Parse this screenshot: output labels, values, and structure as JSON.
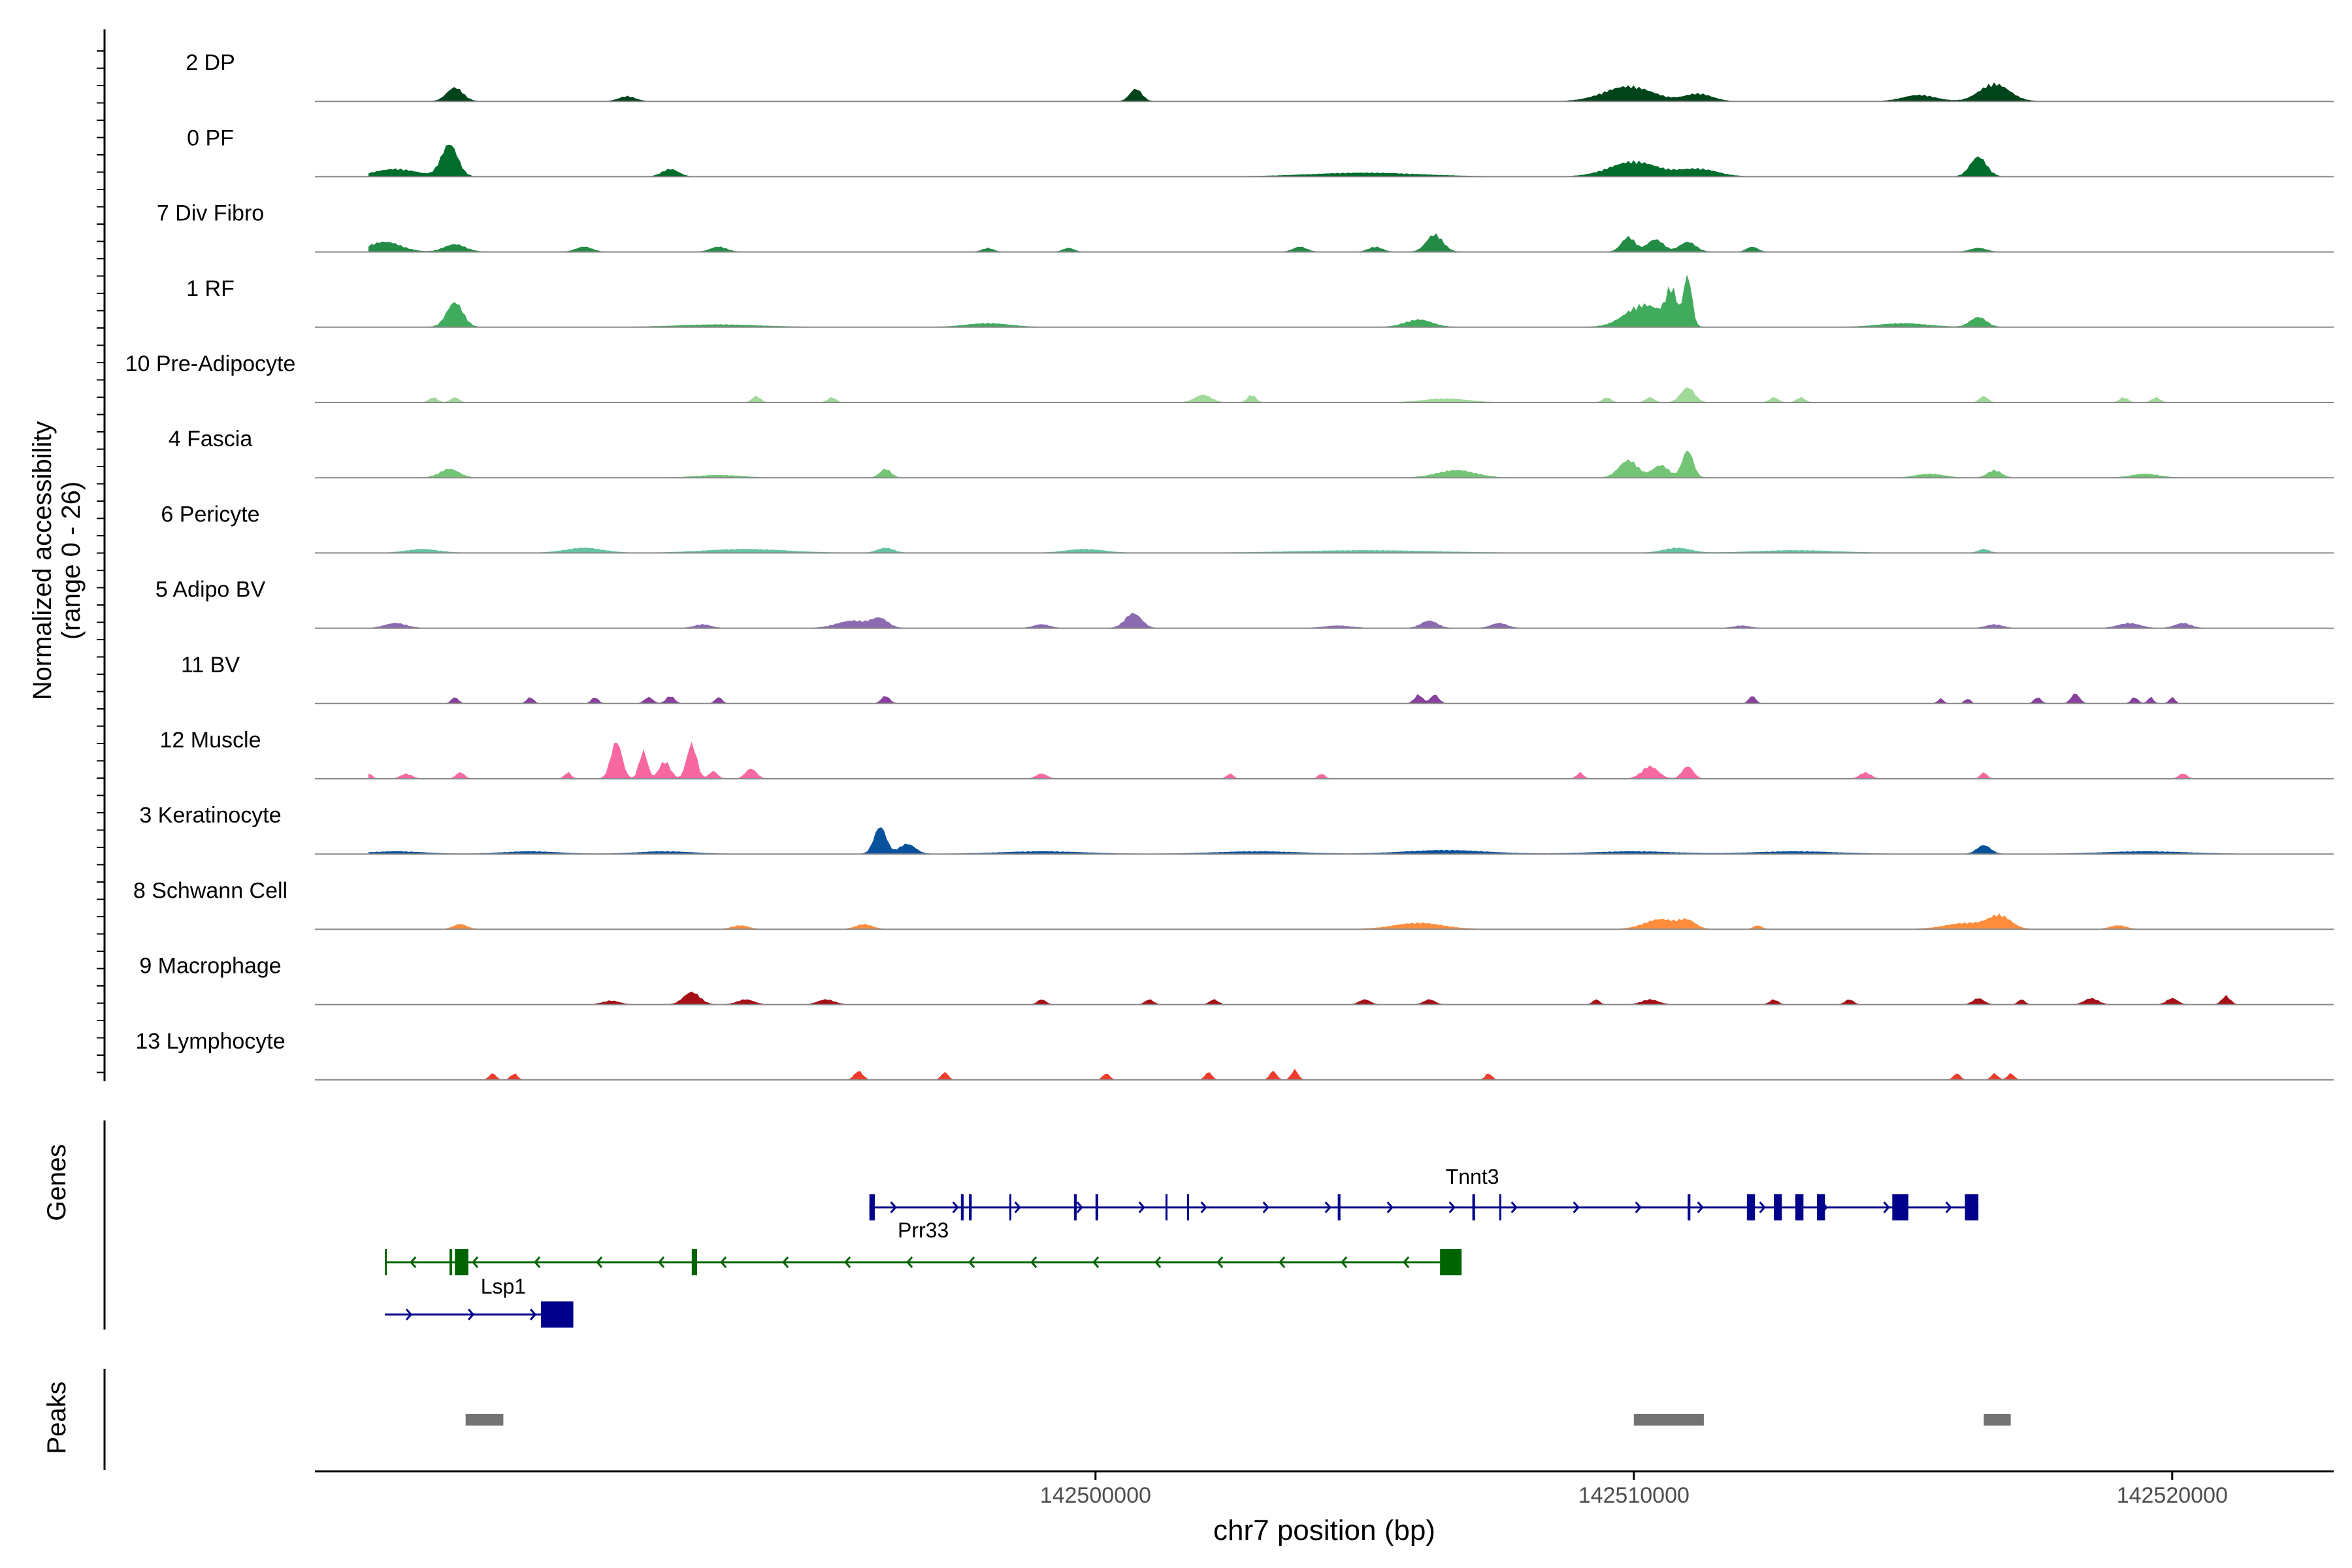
{
  "chart_data": {
    "type": "area",
    "title": "",
    "ylabel_line1": "Normalized accessibility",
    "ylabel_line2": "(range 0 - 26)",
    "xlabel": "chr7 position (bp)",
    "xlim": [
      142485500,
      142523000
    ],
    "ylim": [
      0,
      26
    ],
    "x_ticks": [
      {
        "value": 142500000,
        "label": "142500000"
      },
      {
        "value": 142510000,
        "label": "142510000"
      },
      {
        "value": 142520000,
        "label": "142520000"
      }
    ],
    "tracks": [
      {
        "name": "2 DP",
        "color": "#00441b",
        "peaks": [
          [
            142488100,
            5.5,
            300
          ],
          [
            142491300,
            2.0,
            300
          ],
          [
            142500750,
            5.0,
            220
          ],
          [
            142509900,
            6.0,
            900
          ],
          [
            142511200,
            3.0,
            500
          ],
          [
            142516700,
            7.0,
            550
          ],
          [
            142515300,
            2.5,
            600
          ]
        ]
      },
      {
        "name": "0 PF",
        "color": "#006d2c",
        "peaks": [
          [
            142488000,
            13.0,
            300
          ],
          [
            142487000,
            3.0,
            800
          ],
          [
            142492100,
            3.0,
            300
          ],
          [
            142510000,
            6.0,
            900
          ],
          [
            142511200,
            3.0,
            700
          ],
          [
            142516400,
            8.0,
            300
          ],
          [
            142505000,
            1.5,
            2000
          ]
        ]
      },
      {
        "name": "7 Div Fibro",
        "color": "#238b45",
        "peaks": [
          [
            142486800,
            4.0,
            600
          ],
          [
            142488100,
            3.0,
            400
          ],
          [
            142490500,
            2.0,
            300
          ],
          [
            142493000,
            2.0,
            300
          ],
          [
            142498000,
            1.5,
            200
          ],
          [
            142499500,
            1.5,
            200
          ],
          [
            142503800,
            2.0,
            250
          ],
          [
            142505200,
            2.0,
            250
          ],
          [
            142506300,
            7.0,
            300
          ],
          [
            142509900,
            6.0,
            250
          ],
          [
            142510400,
            5.0,
            300
          ],
          [
            142511000,
            4.0,
            300
          ],
          [
            142512200,
            2.0,
            200
          ],
          [
            142516400,
            1.5,
            300
          ]
        ]
      },
      {
        "name": "1 RF",
        "color": "#41ab5d",
        "peaks": [
          [
            142488100,
            10.0,
            300
          ],
          [
            142493000,
            1.0,
            1500
          ],
          [
            142498000,
            1.5,
            800
          ],
          [
            142506000,
            3.0,
            500
          ],
          [
            142510200,
            9.0,
            700
          ],
          [
            142510700,
            13.0,
            200
          ],
          [
            142511000,
            20.0,
            150
          ],
          [
            142516400,
            4.0,
            300
          ],
          [
            142515000,
            1.5,
            900
          ]
        ]
      },
      {
        "name": "10 Pre-Adipocyte",
        "color": "#a1d99b",
        "peaks": [
          [
            142487700,
            2.0,
            150
          ],
          [
            142488100,
            2.0,
            150
          ],
          [
            142493700,
            2.5,
            150
          ],
          [
            142495100,
            2.0,
            150
          ],
          [
            142502000,
            3.0,
            300
          ],
          [
            142502900,
            3.0,
            150
          ],
          [
            142506500,
            1.5,
            800
          ],
          [
            142509500,
            2.0,
            150
          ],
          [
            142510300,
            2.0,
            150
          ],
          [
            142511000,
            6.0,
            250
          ],
          [
            142512600,
            2.0,
            150
          ],
          [
            142513100,
            2.0,
            150
          ],
          [
            142516500,
            2.5,
            150
          ],
          [
            142519100,
            2.0,
            150
          ],
          [
            142519700,
            2.0,
            150
          ]
        ]
      },
      {
        "name": "4 Fascia",
        "color": "#74c476",
        "peaks": [
          [
            142488000,
            3.5,
            350
          ],
          [
            142493000,
            1.0,
            800
          ],
          [
            142496100,
            3.5,
            200
          ],
          [
            142506700,
            3.0,
            700
          ],
          [
            142509900,
            7.0,
            350
          ],
          [
            142510500,
            5.0,
            300
          ],
          [
            142511000,
            11.0,
            200
          ],
          [
            142516700,
            3.0,
            250
          ],
          [
            142515500,
            1.5,
            500
          ],
          [
            142519500,
            1.5,
            500
          ]
        ]
      },
      {
        "name": "6 Pericyte",
        "color": "#66c2a4",
        "peaks": [
          [
            142487500,
            1.5,
            600
          ],
          [
            142490500,
            2.0,
            700
          ],
          [
            142493500,
            1.5,
            1500
          ],
          [
            142496100,
            2.0,
            300
          ],
          [
            142499800,
            1.5,
            700
          ],
          [
            142505000,
            1.0,
            2500
          ],
          [
            142510800,
            2.0,
            500
          ],
          [
            142516500,
            1.5,
            200
          ],
          [
            142513000,
            1.0,
            1500
          ]
        ]
      },
      {
        "name": "5 Adipo BV",
        "color": "#8c6bb1",
        "peaks": [
          [
            142487000,
            2.0,
            400
          ],
          [
            142492700,
            1.5,
            300
          ],
          [
            142495500,
            3.0,
            600
          ],
          [
            142496000,
            3.5,
            300
          ],
          [
            142500700,
            6.0,
            300
          ],
          [
            142499000,
            1.5,
            300
          ],
          [
            142504500,
            1.0,
            500
          ],
          [
            142506200,
            3.0,
            300
          ],
          [
            142507500,
            2.0,
            300
          ],
          [
            142512000,
            1.0,
            300
          ],
          [
            142516700,
            1.5,
            300
          ],
          [
            142519200,
            2.0,
            400
          ],
          [
            142520200,
            2.0,
            300
          ]
        ]
      },
      {
        "name": "11 BV",
        "color": "#88419d",
        "peaks": [
          [
            142488100,
            2.5,
            120
          ],
          [
            142489500,
            2.5,
            120
          ],
          [
            142490700,
            2.5,
            120
          ],
          [
            142491700,
            2.5,
            150
          ],
          [
            142492100,
            3.0,
            150
          ],
          [
            142493000,
            2.5,
            120
          ],
          [
            142496100,
            3.0,
            150
          ],
          [
            142506000,
            3.5,
            150
          ],
          [
            142506300,
            3.5,
            150
          ],
          [
            142512200,
            3.0,
            120
          ],
          [
            142515700,
            2.0,
            100
          ],
          [
            142516200,
            2.0,
            100
          ],
          [
            142517500,
            2.5,
            120
          ],
          [
            142518200,
            4.0,
            150
          ],
          [
            142519300,
            2.5,
            120
          ],
          [
            142519600,
            2.5,
            100
          ],
          [
            142520000,
            2.5,
            100
          ]
        ]
      },
      {
        "name": "12 Muscle",
        "color": "#f768a1",
        "peaks": [
          [
            142486500,
            2.0,
            120
          ],
          [
            142487200,
            2.0,
            200
          ],
          [
            142488200,
            2.5,
            150
          ],
          [
            142490200,
            2.5,
            120
          ],
          [
            142491100,
            15.0,
            200
          ],
          [
            142491600,
            11.0,
            150
          ],
          [
            142492000,
            7.0,
            200
          ],
          [
            142492500,
            14.0,
            180
          ],
          [
            142492900,
            3.0,
            150
          ],
          [
            142493600,
            4.0,
            200
          ],
          [
            142499000,
            2.0,
            200
          ],
          [
            142502500,
            2.0,
            120
          ],
          [
            142504200,
            2.0,
            120
          ],
          [
            142509000,
            2.5,
            120
          ],
          [
            142510300,
            5.0,
            300
          ],
          [
            142511000,
            5.0,
            200
          ],
          [
            142514300,
            2.5,
            200
          ],
          [
            142516500,
            2.5,
            120
          ],
          [
            142520200,
            2.0,
            150
          ]
        ]
      },
      {
        "name": "3 Keratinocyte",
        "color": "#08519c",
        "peaks": [
          [
            142487000,
            1.0,
            1000
          ],
          [
            142489500,
            1.0,
            1000
          ],
          [
            142492000,
            1.0,
            1000
          ],
          [
            142496000,
            11.0,
            220
          ],
          [
            142496500,
            4.0,
            300
          ],
          [
            142499000,
            1.0,
            1500
          ],
          [
            142503000,
            1.0,
            1500
          ],
          [
            142506500,
            1.5,
            1500
          ],
          [
            142510000,
            1.0,
            1500
          ],
          [
            142513000,
            1.0,
            1500
          ],
          [
            142516500,
            3.5,
            250
          ],
          [
            142519500,
            1.0,
            1500
          ]
        ]
      },
      {
        "name": "8 Schwann Cell",
        "color": "#fd8d3c",
        "peaks": [
          [
            142488200,
            2.0,
            250
          ],
          [
            142493400,
            1.5,
            300
          ],
          [
            142495700,
            2.0,
            300
          ],
          [
            142506000,
            2.5,
            900
          ],
          [
            142510500,
            4.0,
            600
          ],
          [
            142511000,
            3.0,
            300
          ],
          [
            142512300,
            1.5,
            150
          ],
          [
            142516200,
            2.5,
            800
          ],
          [
            142516800,
            5.0,
            400
          ],
          [
            142519000,
            1.5,
            300
          ]
        ]
      },
      {
        "name": "9 Macrophage",
        "color": "#a50f15",
        "peaks": [
          [
            142491000,
            1.5,
            300
          ],
          [
            142492500,
            5.0,
            300
          ],
          [
            142493500,
            2.0,
            300
          ],
          [
            142495000,
            2.0,
            300
          ],
          [
            142499000,
            2.0,
            150
          ],
          [
            142501000,
            2.0,
            150
          ],
          [
            142502200,
            2.0,
            150
          ],
          [
            142505000,
            2.0,
            200
          ],
          [
            142506200,
            2.0,
            200
          ],
          [
            142509300,
            2.0,
            120
          ],
          [
            142510300,
            2.0,
            300
          ],
          [
            142512600,
            2.0,
            150
          ],
          [
            142514000,
            2.0,
            150
          ],
          [
            142516400,
            2.5,
            200
          ],
          [
            142518500,
            2.5,
            250
          ],
          [
            142520000,
            2.5,
            200
          ],
          [
            142521000,
            3.5,
            150
          ],
          [
            142517200,
            2.0,
            120
          ]
        ]
      },
      {
        "name": "13 Lymphocyte",
        "color": "#ef3b2c",
        "peaks": [
          [
            142488800,
            2.5,
            120
          ],
          [
            142489200,
            2.5,
            120
          ],
          [
            142495600,
            3.5,
            150
          ],
          [
            142497200,
            3.0,
            120
          ],
          [
            142500200,
            2.5,
            120
          ],
          [
            142502100,
            3.0,
            120
          ],
          [
            142503300,
            3.5,
            120
          ],
          [
            142503700,
            4.0,
            120
          ],
          [
            142507300,
            2.5,
            120
          ],
          [
            142516000,
            2.5,
            120
          ],
          [
            142516700,
            2.5,
            120
          ],
          [
            142517000,
            2.5,
            120
          ]
        ]
      }
    ],
    "genes_label": "Genes",
    "genes": [
      {
        "name": "Tnnt3",
        "color": "#00008b",
        "strand": "+",
        "start": 142495800,
        "end": 142516400,
        "row": 0,
        "label_pos": 142507000,
        "exons": [
          [
            142495800,
            142495900
          ],
          [
            142497500,
            142497550
          ],
          [
            142497650,
            142497700
          ],
          [
            142498400,
            142498430
          ],
          [
            142499600,
            142499650
          ],
          [
            142500000,
            142500050
          ],
          [
            142501300,
            142501330
          ],
          [
            142501700,
            142501730
          ],
          [
            142504500,
            142504550
          ],
          [
            142507000,
            142507050
          ],
          [
            142507500,
            142507530
          ],
          [
            142511000,
            142511050
          ],
          [
            142512100,
            142512250
          ],
          [
            142512600,
            142512750
          ],
          [
            142513000,
            142513150
          ],
          [
            142513400,
            142513550
          ],
          [
            142514800,
            142515100
          ],
          [
            142516150,
            142516400
          ]
        ]
      },
      {
        "name": "Prr33",
        "color": "#00008b",
        "strand": "+",
        "start": 142495800,
        "end": 142497600,
        "row": 0,
        "label_pos": 142496800,
        "label_below": true,
        "exons": []
      },
      {
        "name": "Lsp1",
        "color": "#006400",
        "strand": "-",
        "start": 142486800,
        "end": 142506800,
        "row": 1,
        "label_pos": 142489000,
        "exons": [
          [
            142486800,
            142486830
          ],
          [
            142488000,
            142488050
          ],
          [
            142488100,
            142488350
          ],
          [
            142492500,
            142492600
          ],
          [
            142506400,
            142506800
          ]
        ]
      },
      {
        "name": "",
        "color": "#00008b",
        "strand": "+",
        "start": 142486800,
        "end": 142490300,
        "row": 2,
        "label_pos": 0,
        "exons": [
          [
            142489700,
            142490300
          ]
        ]
      }
    ],
    "peaks_label": "Peaks",
    "peak_regions": [
      [
        142488300,
        142489000
      ],
      [
        142510000,
        142511300
      ],
      [
        142516500,
        142517000
      ]
    ]
  }
}
